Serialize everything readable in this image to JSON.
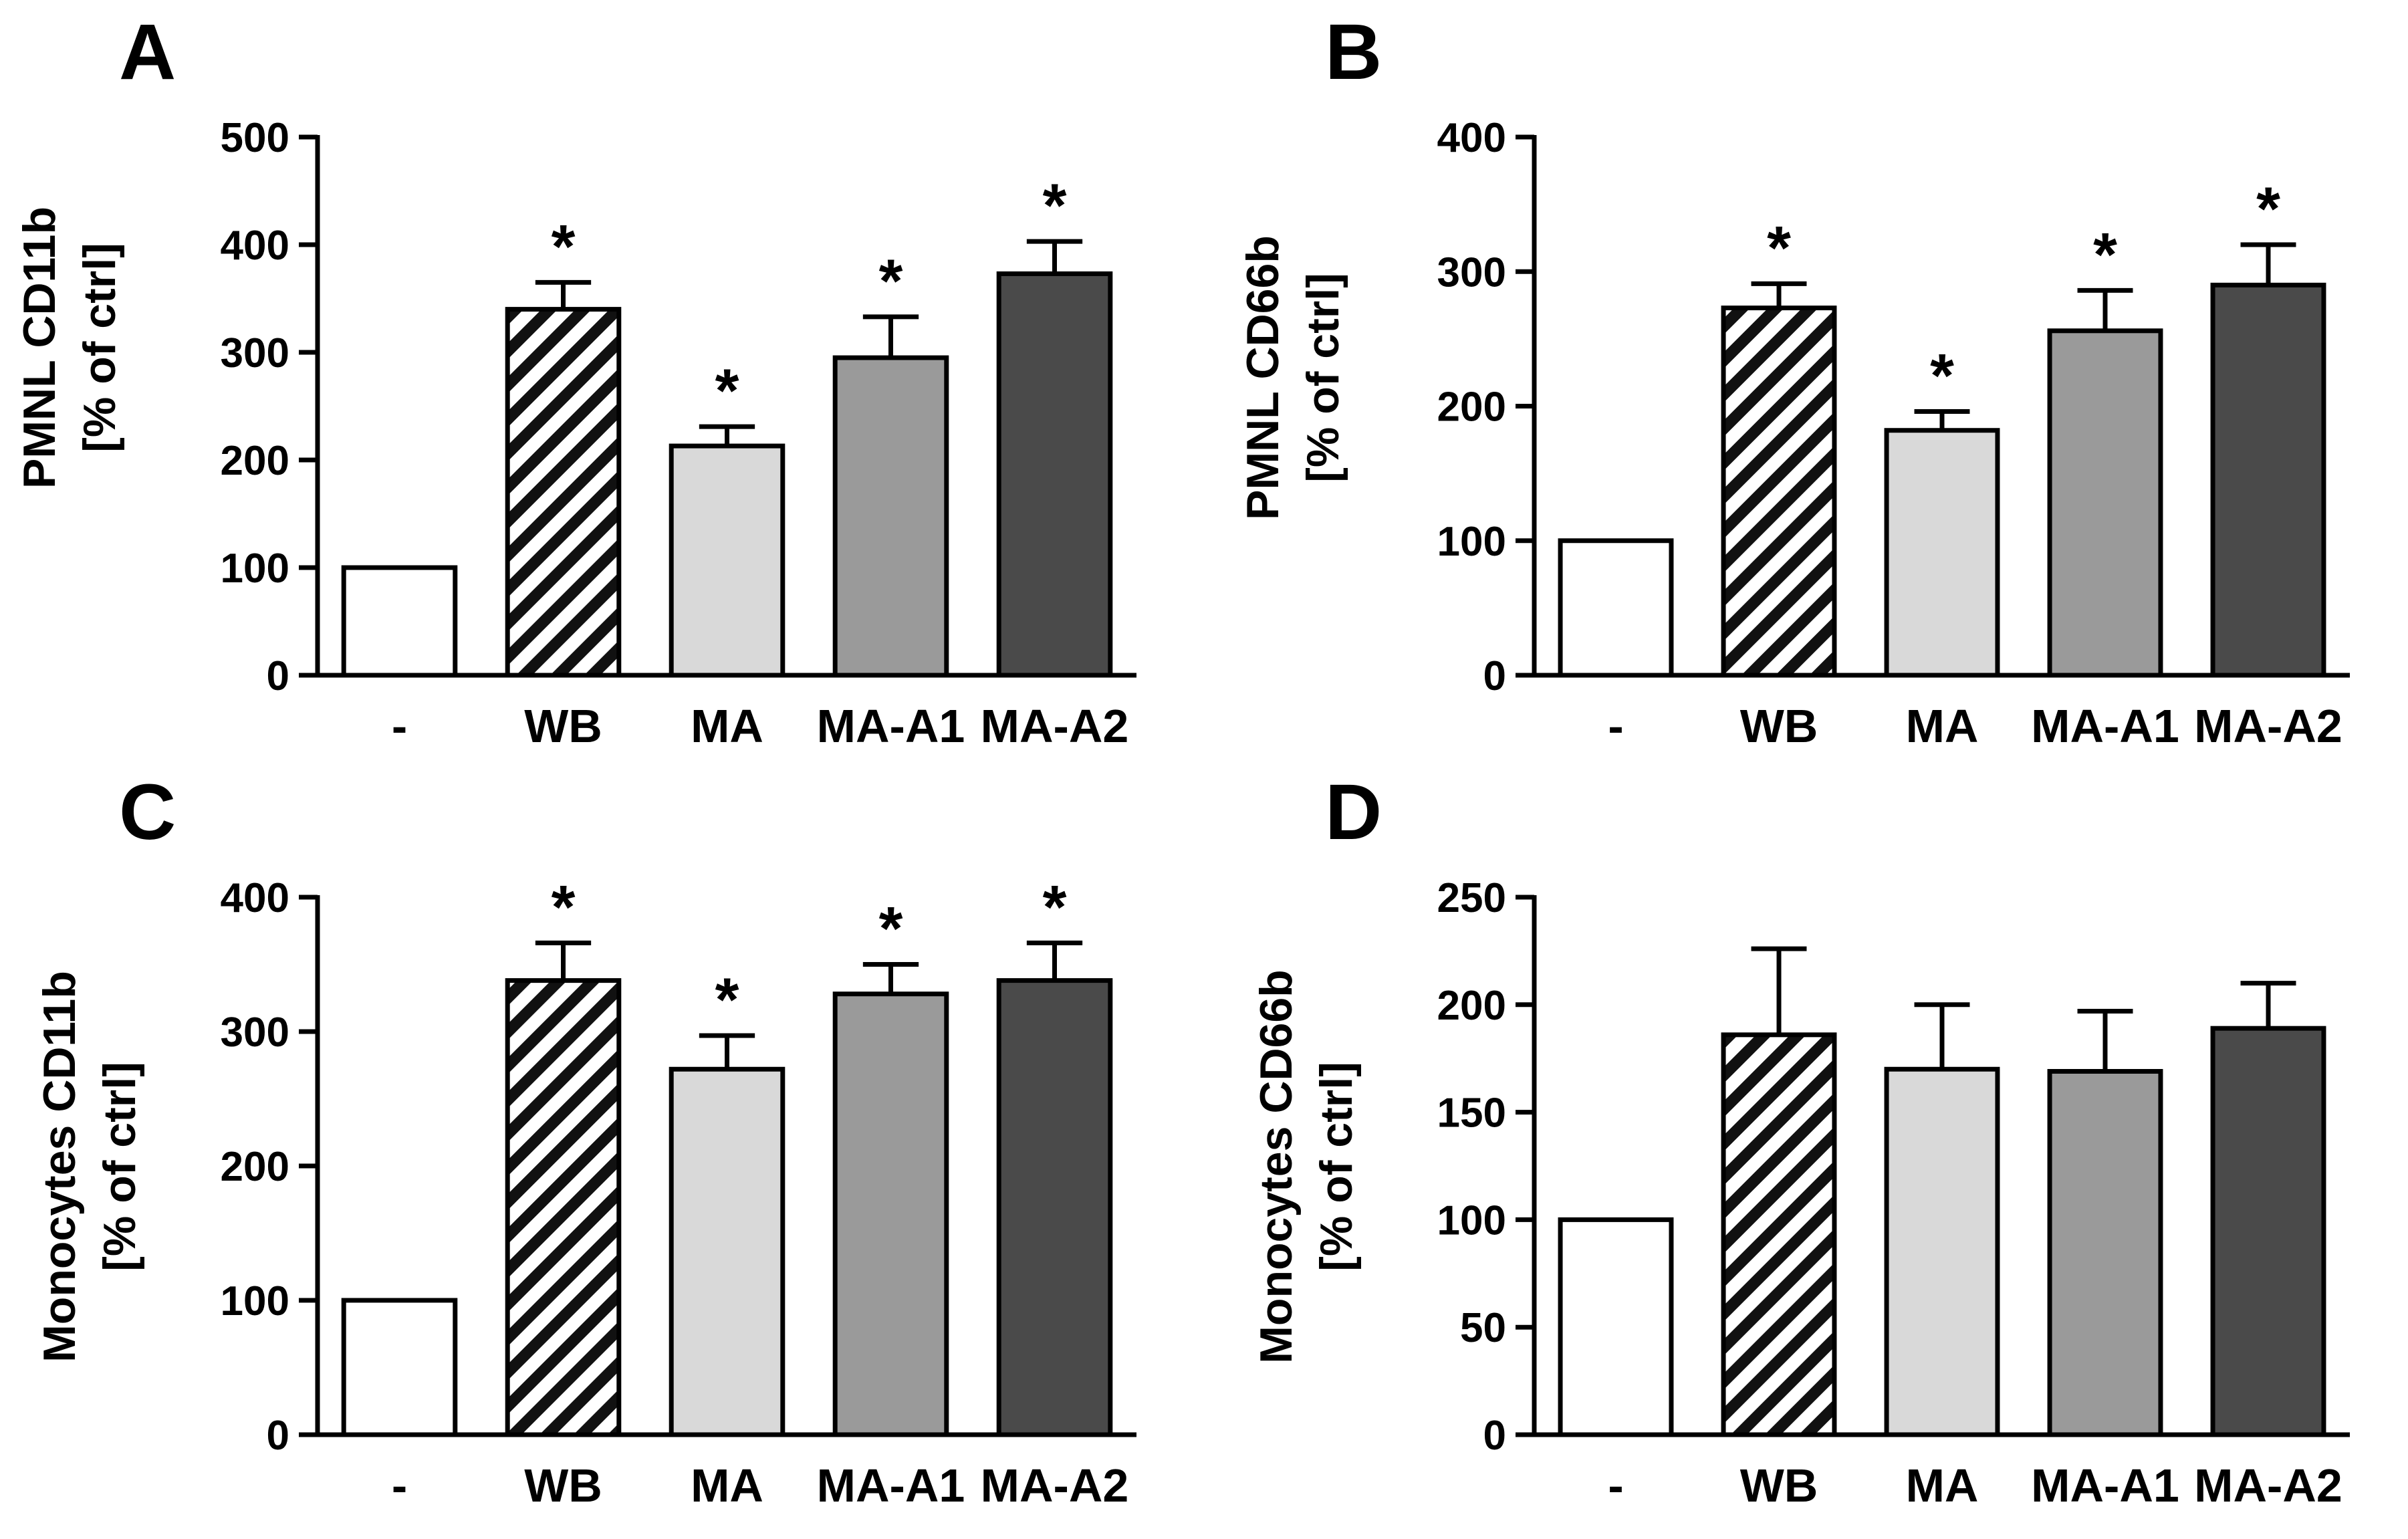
{
  "figure": {
    "categories": [
      "-",
      "WB",
      "MA",
      "MA-A1",
      "MA-A2"
    ],
    "colors": {
      "axis": "#000000",
      "bar_outline": "#000000",
      "bar_ctrl": "#ffffff",
      "bar_wb_bg": "#ffffff",
      "bar_wb_hatch": "#111111",
      "bar_ma": "#d9d9d9",
      "bar_ma_a1": "#9a9a9a",
      "bar_ma_a2": "#4a4a4a"
    }
  },
  "chart_data": [
    {
      "panel": "A",
      "type": "bar",
      "ylabel_line1": "PMNL CD11b",
      "ylabel_line2": "[% of ctrl]",
      "categories": [
        "-",
        "WB",
        "MA",
        "MA-A1",
        "MA-A2"
      ],
      "values": [
        100,
        340,
        213,
        295,
        373
      ],
      "errors": [
        0,
        25,
        18,
        38,
        30
      ],
      "significant": [
        false,
        true,
        true,
        true,
        true
      ],
      "significance_marker": "*",
      "ylim": [
        0,
        500
      ],
      "yticks": [
        0,
        100,
        200,
        300,
        400,
        500
      ]
    },
    {
      "panel": "B",
      "type": "bar",
      "ylabel_line1": "PMNL CD66b",
      "ylabel_line2": "[% of ctrl]",
      "categories": [
        "-",
        "WB",
        "MA",
        "MA-A1",
        "MA-A2"
      ],
      "values": [
        100,
        273,
        182,
        256,
        290
      ],
      "errors": [
        0,
        18,
        14,
        30,
        30
      ],
      "significant": [
        false,
        true,
        true,
        true,
        true
      ],
      "significance_marker": "*",
      "ylim": [
        0,
        400
      ],
      "yticks": [
        0,
        100,
        200,
        300,
        400
      ]
    },
    {
      "panel": "C",
      "type": "bar",
      "ylabel_line1": "Monocytes CD11b",
      "ylabel_line2": "[% of ctrl]",
      "categories": [
        "-",
        "WB",
        "MA",
        "MA-A1",
        "MA-A2"
      ],
      "values": [
        100,
        338,
        272,
        328,
        338
      ],
      "errors": [
        0,
        28,
        25,
        22,
        28
      ],
      "significant": [
        false,
        true,
        true,
        true,
        true
      ],
      "significance_marker": "*",
      "ylim": [
        0,
        400
      ],
      "yticks": [
        0,
        100,
        200,
        300,
        400
      ]
    },
    {
      "panel": "D",
      "type": "bar",
      "ylabel_line1": "Monocytes CD66b",
      "ylabel_line2": "[% of ctrl]",
      "categories": [
        "-",
        "WB",
        "MA",
        "MA-A1",
        "MA-A2"
      ],
      "values": [
        100,
        186,
        170,
        169,
        189
      ],
      "errors": [
        0,
        40,
        30,
        28,
        21
      ],
      "significant": [
        false,
        false,
        false,
        false,
        false
      ],
      "significance_marker": "*",
      "ylim": [
        0,
        250
      ],
      "yticks": [
        0,
        50,
        100,
        150,
        200,
        250
      ]
    }
  ]
}
